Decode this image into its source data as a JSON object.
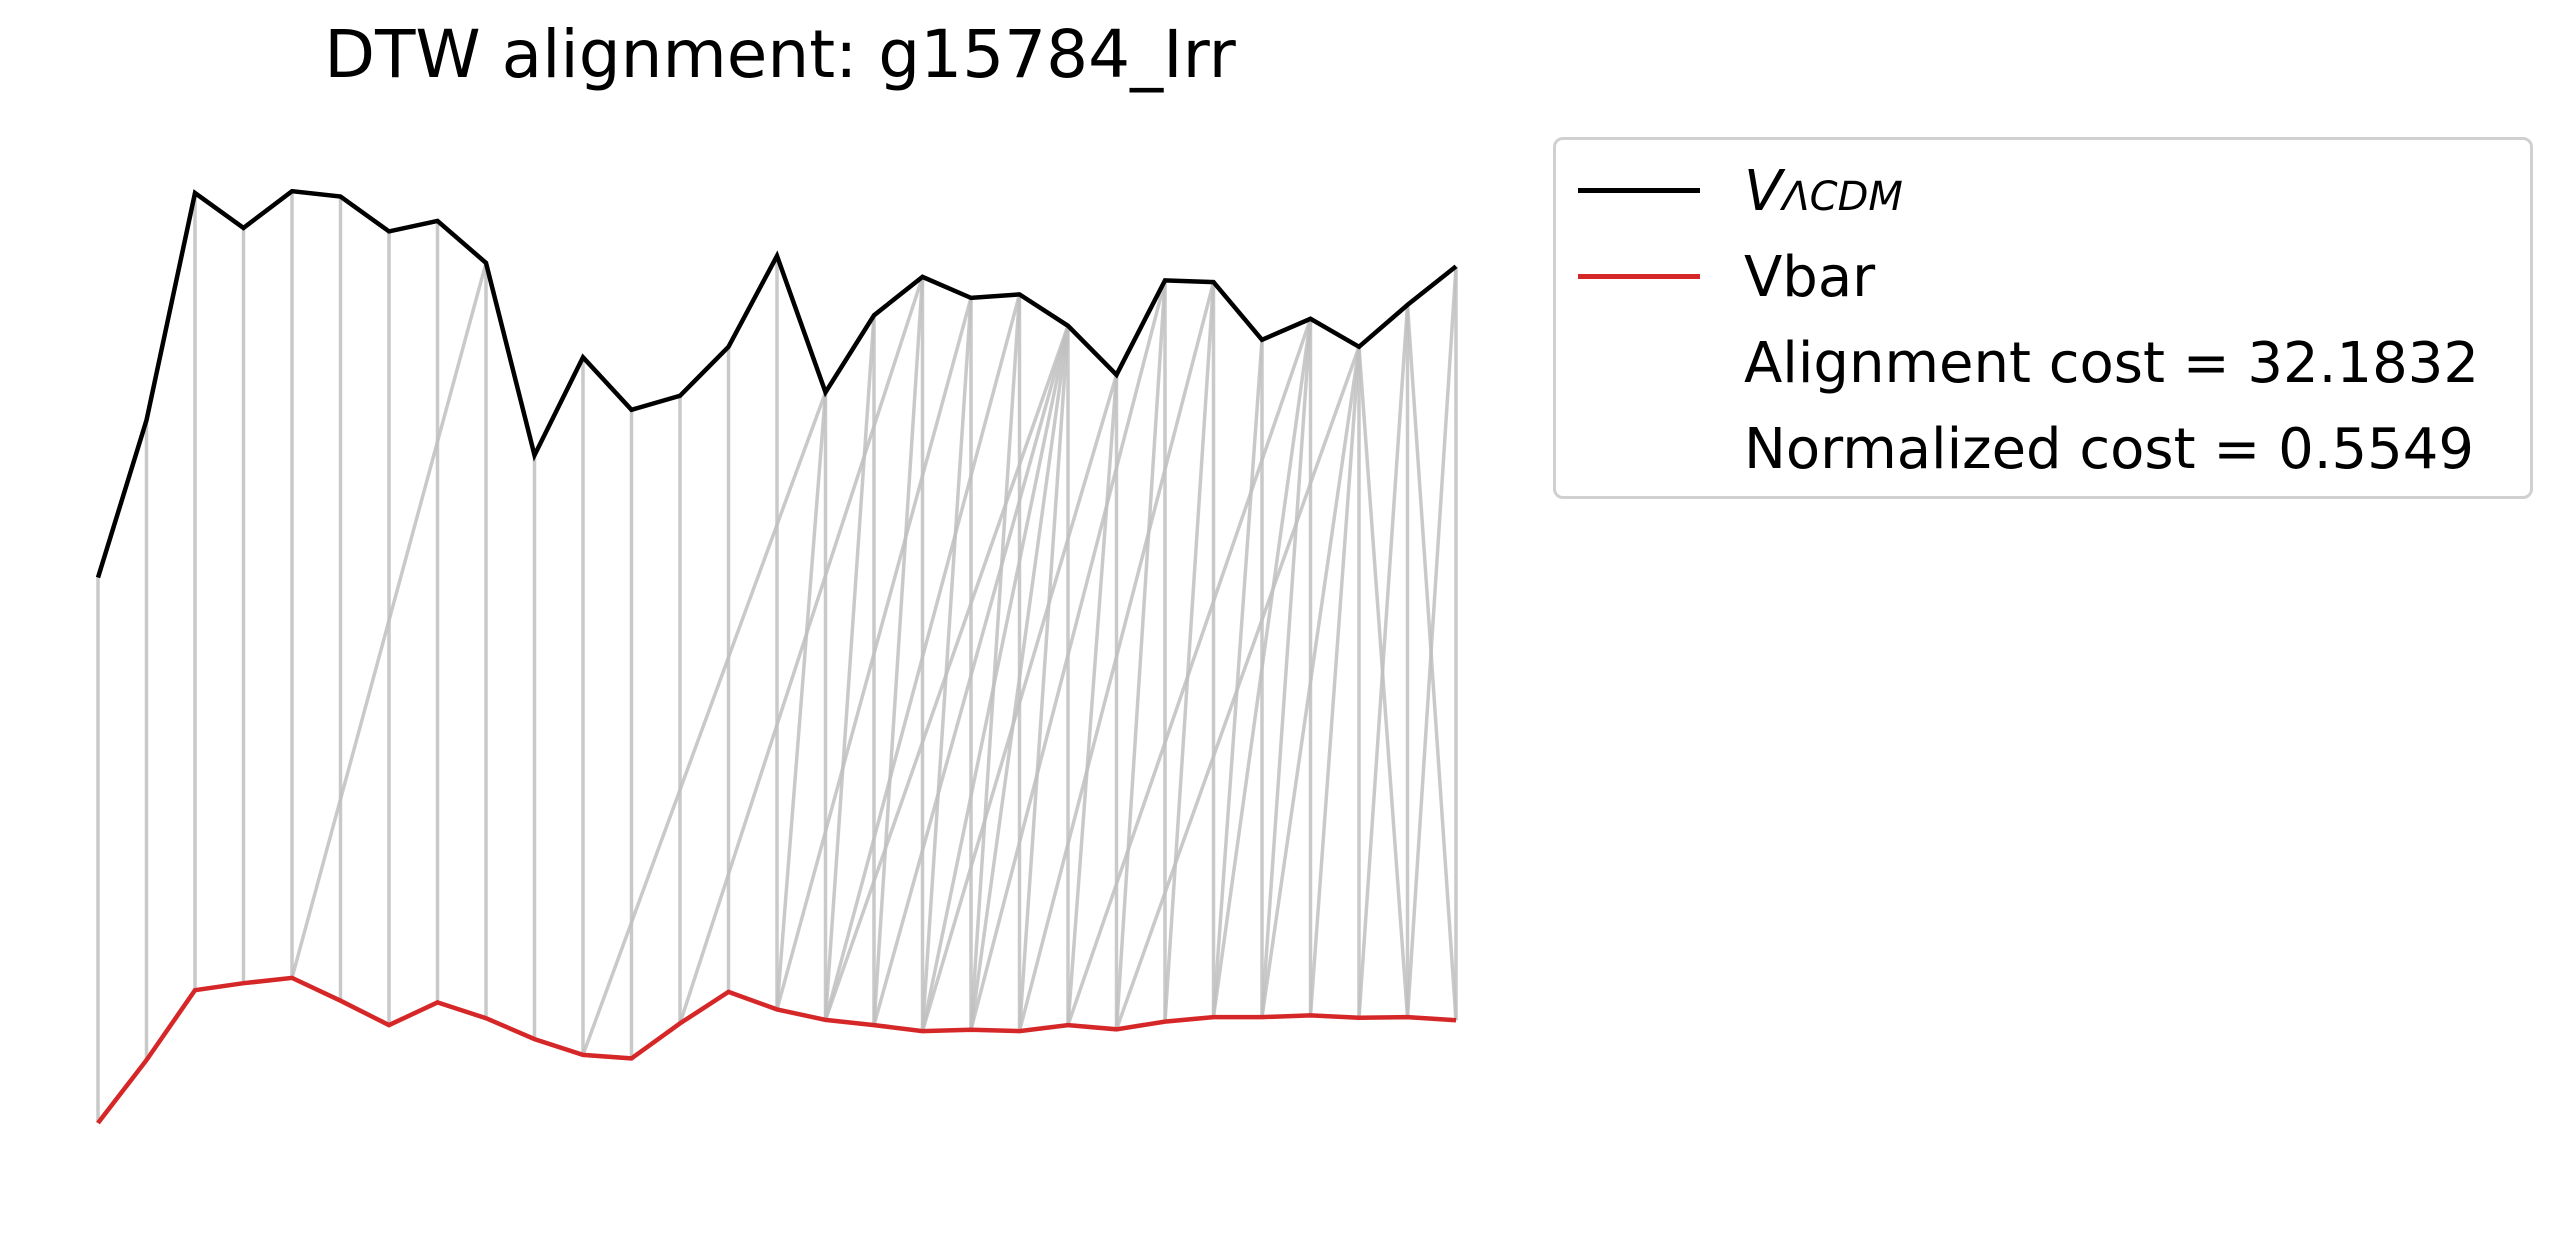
{
  "chart_data": {
    "type": "line",
    "title": "DTW alignment: g15784_Irr",
    "xlabel": "",
    "ylabel": "",
    "axes_visible": false,
    "grid": false,
    "legend_placement": "upper-right-outside",
    "colors": {
      "lcdm": "#000000",
      "vbar": "#d62728",
      "alignment": "#bfbfbf"
    },
    "series": [
      {
        "name": "V_ΛCDM",
        "label_main": "V",
        "label_sub": "ΛCDM",
        "values": [
          1.9,
          2.35,
          3.0,
          2.9,
          3.005,
          2.99,
          2.89,
          2.92,
          2.8,
          2.25,
          2.53,
          2.38,
          2.42,
          2.56,
          2.82,
          2.43,
          2.65,
          2.76,
          2.7,
          2.71,
          2.62,
          2.48,
          2.75,
          2.745,
          2.58,
          2.64,
          2.56,
          2.68,
          2.79
        ]
      },
      {
        "name": "Vbar",
        "values": [
          0.34,
          0.52,
          0.72,
          0.74,
          0.755,
          0.69,
          0.62,
          0.685,
          0.64,
          0.58,
          0.535,
          0.525,
          0.625,
          0.715,
          0.665,
          0.635,
          0.62,
          0.603,
          0.607,
          0.603,
          0.62,
          0.608,
          0.63,
          0.643,
          0.643,
          0.648,
          0.641,
          0.643,
          0.634
        ]
      }
    ],
    "alignment_pairs": [
      [
        0,
        0
      ],
      [
        1,
        1
      ],
      [
        2,
        2
      ],
      [
        3,
        3
      ],
      [
        4,
        4
      ],
      [
        5,
        5
      ],
      [
        6,
        6
      ],
      [
        7,
        7
      ],
      [
        8,
        8
      ],
      [
        8,
        4
      ],
      [
        9,
        9
      ],
      [
        10,
        10
      ],
      [
        11,
        11
      ],
      [
        12,
        12
      ],
      [
        13,
        13
      ],
      [
        14,
        14
      ],
      [
        15,
        15
      ],
      [
        16,
        16
      ],
      [
        17,
        17
      ],
      [
        18,
        18
      ],
      [
        19,
        19
      ],
      [
        20,
        20
      ],
      [
        21,
        21
      ],
      [
        22,
        22
      ],
      [
        23,
        23
      ],
      [
        24,
        24
      ],
      [
        25,
        25
      ],
      [
        26,
        26
      ],
      [
        27,
        27
      ],
      [
        28,
        28
      ],
      [
        15,
        10
      ],
      [
        17,
        12
      ],
      [
        18,
        14
      ],
      [
        19,
        15
      ],
      [
        20,
        16
      ],
      [
        21,
        17
      ],
      [
        22,
        18
      ],
      [
        23,
        19
      ],
      [
        25,
        20
      ],
      [
        26,
        21
      ],
      [
        20,
        15
      ],
      [
        20,
        16
      ],
      [
        20,
        17
      ],
      [
        20,
        18
      ],
      [
        21,
        20
      ],
      [
        22,
        21
      ],
      [
        23,
        22
      ],
      [
        24,
        23
      ],
      [
        25,
        24
      ],
      [
        26,
        25
      ],
      [
        27,
        26
      ],
      [
        28,
        27
      ],
      [
        15,
        14
      ],
      [
        16,
        15
      ],
      [
        17,
        16
      ],
      [
        18,
        17
      ],
      [
        19,
        18
      ],
      [
        20,
        19
      ],
      [
        21,
        20
      ],
      [
        22,
        21
      ],
      [
        23,
        22
      ],
      [
        24,
        23
      ],
      [
        25,
        23
      ],
      [
        26,
        24
      ],
      [
        26,
        25
      ],
      [
        26,
        26
      ],
      [
        26,
        27
      ],
      [
        27,
        28
      ],
      [
        28,
        28
      ]
    ],
    "x_spacing": 1,
    "ylim": [
      0.2,
      3.1
    ],
    "annotations": [
      "Alignment cost = 32.1832",
      "Normalized cost = 0.5549"
    ]
  }
}
